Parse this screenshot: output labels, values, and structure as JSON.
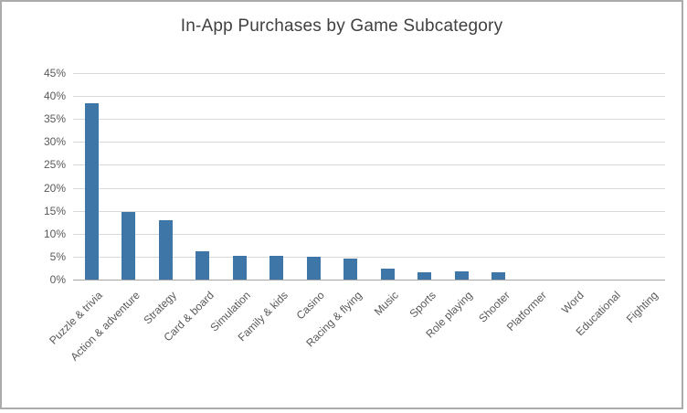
{
  "chart_data": {
    "type": "bar",
    "title": "In-App Purchases by Game Subcategory",
    "categories": [
      "Puzzle & trivia",
      "Action & adventure",
      "Strategy",
      "Card & board",
      "Simulation",
      "Family & kids",
      "Casino",
      "Racing & flying",
      "Music",
      "Sports",
      "Role playing",
      "Shooter",
      "Platformer",
      "Word",
      "Educational",
      "Fighting"
    ],
    "values": [
      38.5,
      14.8,
      12.9,
      6.2,
      5.2,
      5.1,
      5.0,
      4.6,
      2.4,
      1.6,
      1.7,
      1.6,
      0,
      0,
      0,
      0
    ],
    "xlabel": "",
    "ylabel": "",
    "ylim": [
      0,
      45
    ],
    "y_tick_step": 5,
    "y_tick_labels": [
      "0%",
      "5%",
      "10%",
      "15%",
      "20%",
      "25%",
      "30%",
      "35%",
      "40%",
      "45%"
    ],
    "grid": "horizontal",
    "legend": "none",
    "bar_color": "#3f76a8",
    "title_color": "#404040",
    "axis_label_color": "#595959",
    "gridline_color": "#d9d9d9"
  }
}
